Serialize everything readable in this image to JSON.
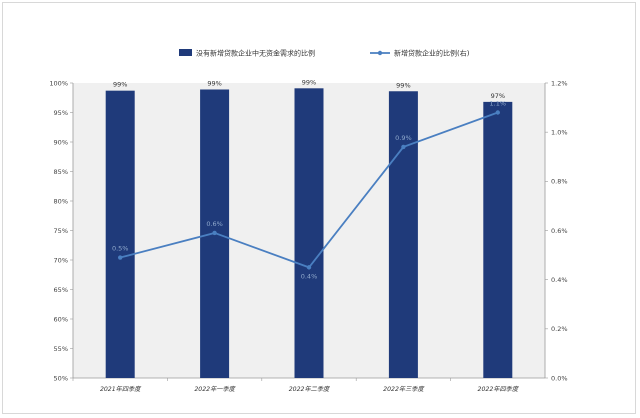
{
  "chart_data": {
    "type": "bar",
    "categories": [
      "2021年四季度",
      "2022年一季度",
      "2022年二季度",
      "2022年三季度",
      "2022年四季度"
    ],
    "series": [
      {
        "name": "没有新增贷款企业中无资金需求的比例",
        "type": "bar",
        "axis": "left",
        "values": [
          98.7,
          98.9,
          99.1,
          98.6,
          96.8
        ],
        "labels": [
          "99%",
          "99%",
          "99%",
          "99%",
          "97%"
        ],
        "color": "#1f3a7a"
      },
      {
        "name": "新增贷款企业的比例(右)",
        "type": "line",
        "axis": "right",
        "values": [
          0.49,
          0.59,
          0.45,
          0.94,
          1.08
        ],
        "labels": [
          "0.5%",
          "0.6%",
          "0.4%",
          "0.9%",
          "1.1%"
        ],
        "color": "#4a7fc1"
      }
    ],
    "y_left": {
      "lim": [
        50,
        100
      ],
      "ticks": [
        "50%",
        "55%",
        "60%",
        "65%",
        "70%",
        "75%",
        "80%",
        "85%",
        "90%",
        "95%",
        "100%"
      ]
    },
    "y_right": {
      "lim": [
        0,
        1.2
      ],
      "ticks": [
        "0.0%",
        "0.2%",
        "0.4%",
        "0.6%",
        "0.8%",
        "1.0%",
        "1.2%"
      ]
    },
    "legend": "top-center",
    "grid": false
  }
}
